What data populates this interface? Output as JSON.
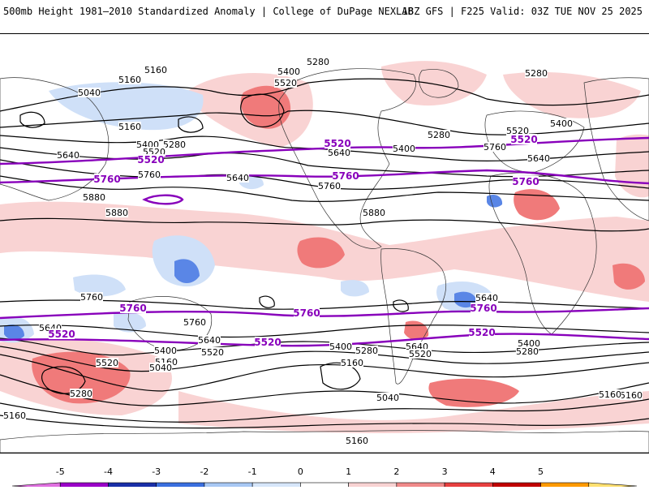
{
  "header": {
    "title": "500mb Height 1981–2010 Standardized Anomaly | College of DuPage NEXLAB",
    "run_info": "18Z GFS | F225 Valid: 03Z TUE NOV 25 2025"
  },
  "colorbar": {
    "ticks": [
      "-5",
      "-4",
      "-3",
      "-2",
      "-1",
      "0",
      "1",
      "2",
      "3",
      "4",
      "5"
    ],
    "colors": [
      "#e070e0",
      "#9a00c8",
      "#1a2fa8",
      "#3a6fdf",
      "#a8c8f4",
      "#d6e6fa",
      "#ffffff",
      "#f8d2d2",
      "#f08a8a",
      "#e84040",
      "#c00000",
      "#ff9a00",
      "#ffe070"
    ]
  },
  "map": {
    "palette": {
      "pos_light": "#f9d3d3",
      "pos_mid": "#f07a7a",
      "pos_dark": "#e23c3c",
      "neg_light": "#cfe0f8",
      "neg_mid": "#5a86e6",
      "contour_black": "#000000",
      "contour_purple": "#8800bb"
    },
    "black_labels": [
      {
        "text": "5280"
      },
      {
        "text": "5400"
      },
      {
        "text": "5520"
      },
      {
        "text": "5160"
      },
      {
        "text": "5160"
      },
      {
        "text": "5040"
      },
      {
        "text": "5160"
      },
      {
        "text": "5400"
      },
      {
        "text": "5280"
      },
      {
        "text": "5520"
      },
      {
        "text": "5640"
      },
      {
        "text": "5760"
      },
      {
        "text": "5880"
      },
      {
        "text": "5880"
      },
      {
        "text": "5640"
      },
      {
        "text": "5760"
      },
      {
        "text": "5280"
      },
      {
        "text": "5400"
      },
      {
        "text": "5640"
      },
      {
        "text": "5880"
      },
      {
        "text": "5280"
      },
      {
        "text": "5520"
      },
      {
        "text": "5400"
      },
      {
        "text": "5760"
      },
      {
        "text": "5640"
      },
      {
        "text": "5760"
      },
      {
        "text": "5640"
      },
      {
        "text": "5760"
      },
      {
        "text": "5640"
      },
      {
        "text": "5400"
      },
      {
        "text": "5520"
      },
      {
        "text": "5160"
      },
      {
        "text": "5040"
      },
      {
        "text": "5520"
      },
      {
        "text": "5280"
      },
      {
        "text": "5160"
      },
      {
        "text": "5040"
      },
      {
        "text": "5160"
      },
      {
        "text": "5400"
      },
      {
        "text": "5280"
      },
      {
        "text": "5640"
      },
      {
        "text": "5520"
      },
      {
        "text": "5160"
      },
      {
        "text": "5640"
      },
      {
        "text": "5400"
      },
      {
        "text": "5280"
      },
      {
        "text": "5160"
      },
      {
        "text": "5160"
      }
    ],
    "purple_labels": [
      {
        "text": "5520"
      },
      {
        "text": "5520"
      },
      {
        "text": "5520"
      },
      {
        "text": "5760"
      },
      {
        "text": "5760"
      },
      {
        "text": "5760"
      },
      {
        "text": "5760"
      },
      {
        "text": "5760"
      },
      {
        "text": "5760"
      },
      {
        "text": "5520"
      },
      {
        "text": "5520"
      },
      {
        "text": "5520"
      }
    ]
  }
}
